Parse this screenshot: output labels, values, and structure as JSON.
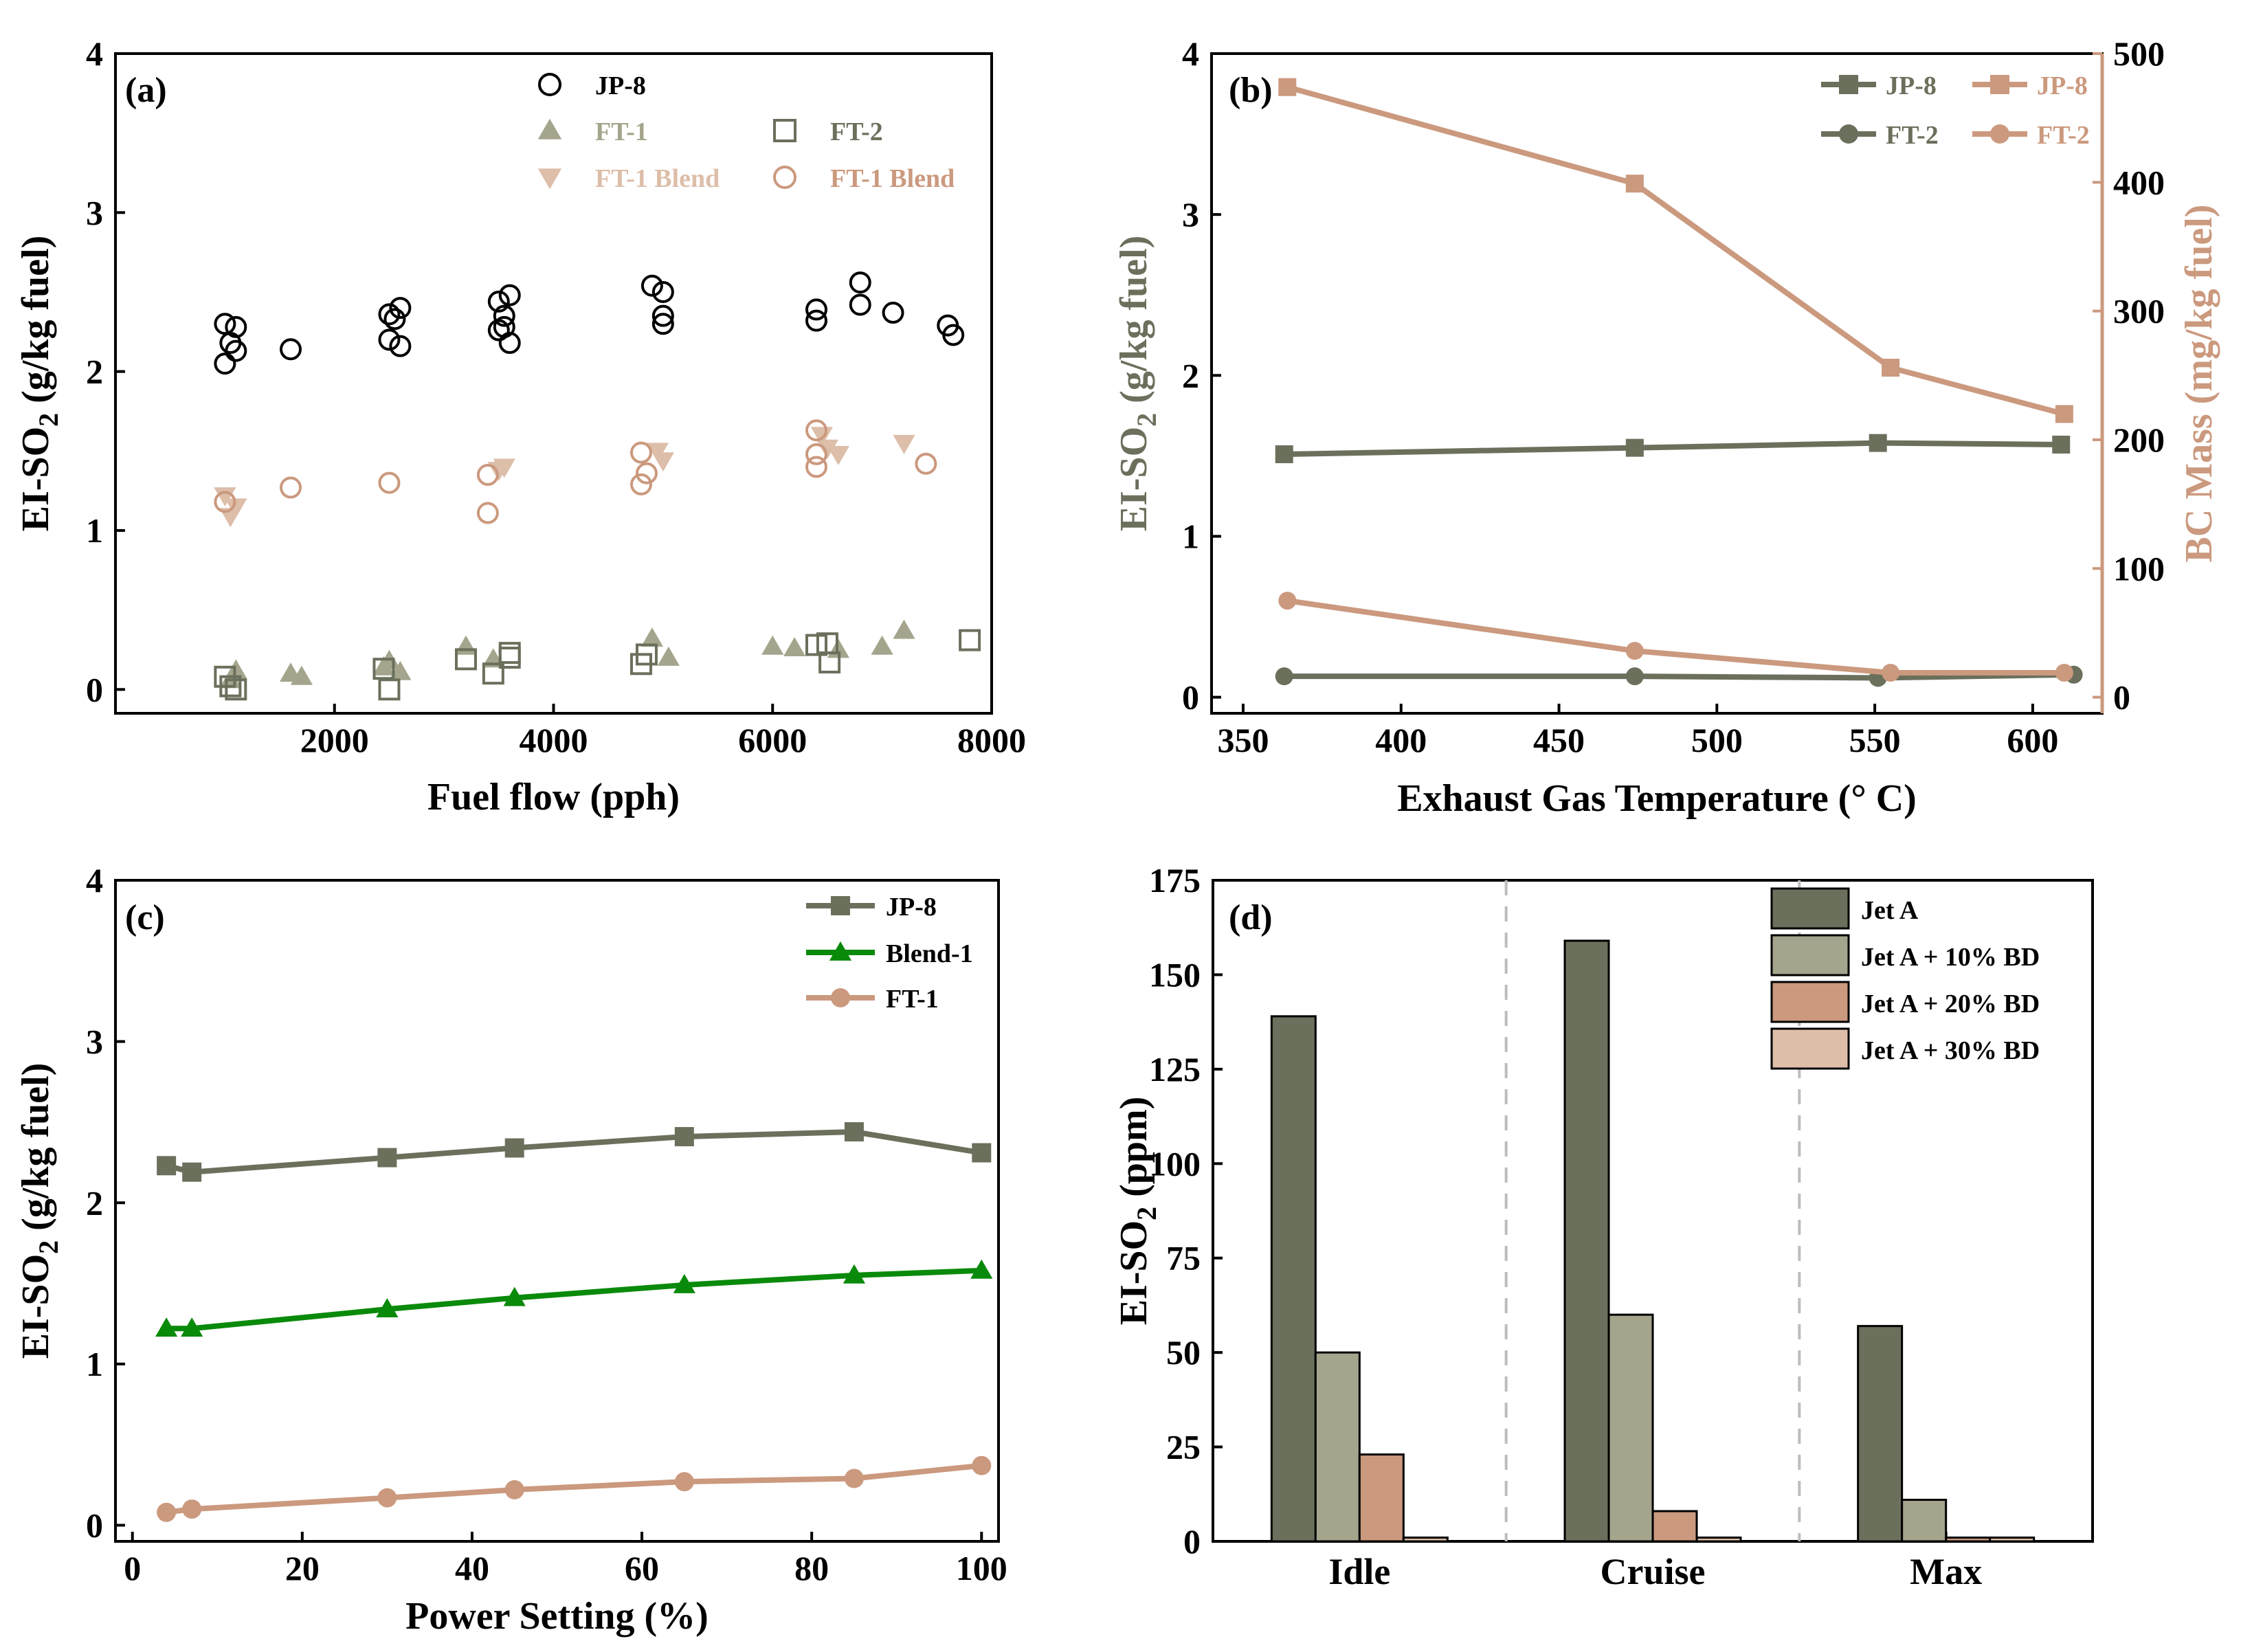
{
  "colors": {
    "dark": "#6b705c",
    "sage": "#a5a58d",
    "tan": "#cb997e",
    "blush": "#ddbea9",
    "green": "#0a8a0a",
    "black": "#000000"
  },
  "chart_data": [
    {
      "id": "a",
      "type": "scatter",
      "panel_label": "(a)",
      "xlabel": "Fuel flow (pph)",
      "ylabel_main": "EI-SO",
      "ylabel_sub": "2",
      "ylabel_unit": " (g/kg fuel)",
      "xlim": [
        0,
        8000
      ],
      "ylim": [
        -0.15,
        4
      ],
      "xticks": [
        2000,
        4000,
        6000,
        8000
      ],
      "yticks": [
        0,
        1,
        2,
        3,
        4
      ],
      "series": [
        {
          "name": "JP-8",
          "marker": "circle-open",
          "color": "black",
          "x": [
            1000,
            1100,
            1050,
            1000,
            1100,
            1600,
            2500,
            2600,
            2550,
            2500,
            2600,
            3500,
            3600,
            3550,
            3500,
            3600,
            3550,
            4900,
            5000,
            5000,
            5000,
            6400,
            6400,
            6800,
            6800,
            7100,
            7600,
            7650
          ],
          "y": [
            2.3,
            2.28,
            2.18,
            2.05,
            2.13,
            2.14,
            2.36,
            2.4,
            2.33,
            2.2,
            2.16,
            2.44,
            2.48,
            2.35,
            2.26,
            2.18,
            2.28,
            2.54,
            2.5,
            2.35,
            2.3,
            2.39,
            2.32,
            2.56,
            2.42,
            2.37,
            2.29,
            2.23
          ]
        },
        {
          "name": "FT-1",
          "marker": "triangle-up",
          "color": "sage",
          "x": [
            1050,
            1100,
            1600,
            1700,
            2450,
            2500,
            2600,
            3200,
            3450,
            4900,
            5050,
            6000,
            6200,
            6600,
            7000,
            7200
          ],
          "y": [
            0.06,
            0.12,
            0.1,
            0.08,
            0.14,
            0.18,
            0.11,
            0.27,
            0.19,
            0.32,
            0.2,
            0.27,
            0.26,
            0.25,
            0.27,
            0.37
          ]
        },
        {
          "name": "FT-2",
          "marker": "square-open",
          "color": "dark",
          "x": [
            1000,
            1050,
            1100,
            2450,
            2500,
            3200,
            3450,
            3600,
            3600,
            4800,
            4850,
            6400,
            6500,
            6520,
            7800
          ],
          "y": [
            0.08,
            0.02,
            0.0,
            0.13,
            0.0,
            0.19,
            0.1,
            0.2,
            0.23,
            0.16,
            0.22,
            0.28,
            0.29,
            0.17,
            0.31
          ]
        },
        {
          "name": "FT-1 Blend",
          "marker": "triangle-down",
          "color": "blush",
          "x": [
            1000,
            1050,
            1100,
            3500,
            3550,
            4950,
            5000,
            6450,
            6500,
            6600,
            7200
          ],
          "y": [
            1.22,
            1.09,
            1.15,
            1.38,
            1.4,
            1.5,
            1.44,
            1.6,
            1.52,
            1.48,
            1.55
          ]
        },
        {
          "name": "FT-1 Blend",
          "marker": "circle-open",
          "color": "tan",
          "x": [
            1000,
            1600,
            2500,
            3400,
            3400,
            4800,
            4850,
            4800,
            6400,
            6400,
            6400,
            7400
          ],
          "y": [
            1.18,
            1.27,
            1.3,
            1.35,
            1.11,
            1.49,
            1.36,
            1.29,
            1.63,
            1.48,
            1.4,
            1.42
          ]
        }
      ]
    },
    {
      "id": "b",
      "type": "line",
      "panel_label": "(b)",
      "xlabel": "Exhaust Gas Temperature (° C)",
      "ylabel_main": "EI-SO",
      "ylabel_sub": "2",
      "ylabel_unit": " (g/kg fuel)",
      "ylabel_right": "BC Mass (mg/kg fuel)",
      "xlim": [
        340,
        622
      ],
      "ylim": [
        -0.1,
        4
      ],
      "ylim_right": [
        -12.5,
        500
      ],
      "xticks": [
        350,
        400,
        450,
        500,
        550,
        600
      ],
      "yticks": [
        0,
        1,
        2,
        3,
        4
      ],
      "yticks_right": [
        0,
        100,
        200,
        300,
        400,
        500
      ],
      "series": [
        {
          "name": "JP-8",
          "axis": "left",
          "marker": "square",
          "color": "dark",
          "x": [
            363,
            474,
            551,
            609
          ],
          "y": [
            1.51,
            1.55,
            1.58,
            1.57
          ]
        },
        {
          "name": "FT-2",
          "axis": "left",
          "marker": "circle",
          "color": "dark",
          "x": [
            363,
            474,
            551,
            613
          ],
          "y": [
            0.13,
            0.13,
            0.12,
            0.14
          ]
        },
        {
          "name": "JP-8",
          "axis": "right",
          "marker": "square",
          "color": "tan",
          "x": [
            364,
            474,
            555,
            610
          ],
          "y": [
            474,
            399,
            256,
            220
          ]
        },
        {
          "name": "FT-2",
          "axis": "right",
          "marker": "circle",
          "color": "tan",
          "x": [
            364,
            474,
            555,
            610
          ],
          "y": [
            75,
            36,
            19,
            19
          ]
        }
      ]
    },
    {
      "id": "c",
      "type": "line",
      "panel_label": "(c)",
      "xlabel": "Power Setting (%)",
      "ylabel_main": "EI-SO",
      "ylabel_sub": "2",
      "ylabel_unit": " (g/kg fuel)",
      "xlim": [
        -2,
        102
      ],
      "ylim": [
        -0.1,
        4
      ],
      "xticks": [
        0,
        20,
        40,
        60,
        80,
        100
      ],
      "yticks": [
        0,
        1,
        2,
        3,
        4
      ],
      "series": [
        {
          "name": "JP-8",
          "marker": "square",
          "color": "dark",
          "x": [
            4,
            7,
            30,
            45,
            65,
            85,
            100
          ],
          "y": [
            2.23,
            2.19,
            2.28,
            2.34,
            2.41,
            2.44,
            2.31
          ]
        },
        {
          "name": "Blend-1",
          "marker": "triangle-up",
          "color": "green",
          "x": [
            4,
            7,
            30,
            45,
            65,
            85,
            100
          ],
          "y": [
            1.22,
            1.22,
            1.34,
            1.41,
            1.49,
            1.55,
            1.58
          ]
        },
        {
          "name": "FT-1",
          "marker": "circle",
          "color": "tan",
          "x": [
            4,
            7,
            30,
            45,
            65,
            85,
            100
          ],
          "y": [
            0.08,
            0.1,
            0.17,
            0.22,
            0.27,
            0.29,
            0.37
          ]
        }
      ]
    },
    {
      "id": "d",
      "type": "bar",
      "panel_label": "(d)",
      "ylabel_main": "EI-SO",
      "ylabel_sub": "2",
      "ylabel_unit": " (ppm)",
      "categories": [
        "Idle",
        "Cruise",
        "Max"
      ],
      "ylim": [
        0,
        175
      ],
      "yticks": [
        0,
        25,
        50,
        75,
        100,
        125,
        150,
        175
      ],
      "series": [
        {
          "name": "Jet A",
          "color": "dark",
          "values": [
            139,
            159,
            57
          ]
        },
        {
          "name": "Jet A + 10% BD",
          "color": "sage",
          "values": [
            50,
            60,
            11
          ]
        },
        {
          "name": "Jet A + 20% BD",
          "color": "tan",
          "values": [
            23,
            8,
            1
          ]
        },
        {
          "name": "Jet A + 30% BD",
          "color": "blush",
          "values": [
            1,
            1,
            1
          ]
        }
      ]
    }
  ]
}
